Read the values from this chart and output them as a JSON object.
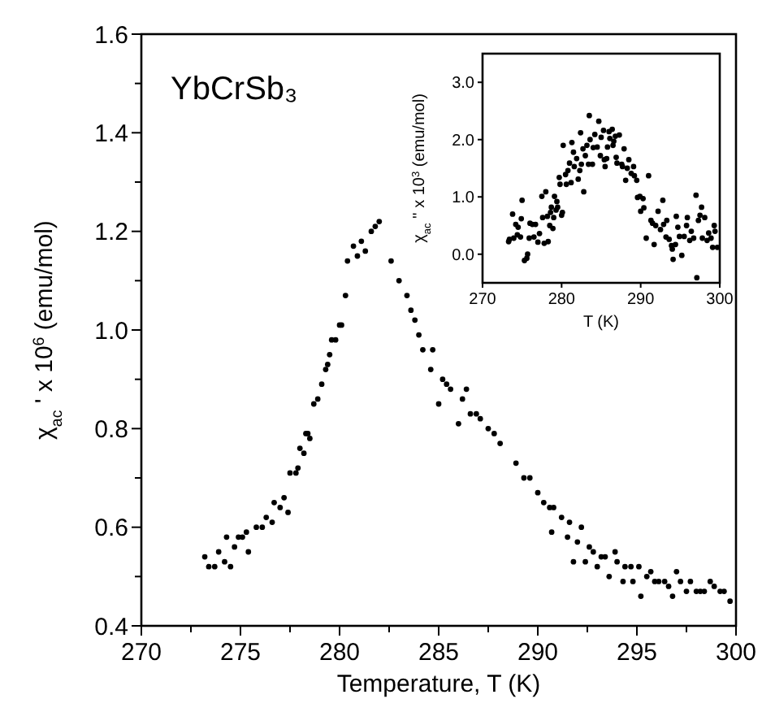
{
  "chart_data": [
    {
      "type": "scatter",
      "xlabel": "Temperature, T (K)",
      "ylabel": "χ$_{ac}$ ' x 10$^{6}$ (emu/mol)",
      "annotations": [
        "YbCrSb₃"
      ],
      "marker": "circle",
      "xlim": [
        270,
        300
      ],
      "ylim": [
        0.4,
        1.6
      ],
      "xticks": [
        270,
        {
          "value": 272.5,
          "label": null
        },
        275,
        {
          "value": 277.5,
          "label": null
        },
        280,
        {
          "value": 282.5,
          "label": null
        },
        285,
        {
          "value": 287.5,
          "label": null
        },
        290,
        {
          "value": 292.5,
          "label": null
        },
        295,
        {
          "value": 297.5,
          "label": null
        },
        300
      ],
      "yticks": [
        0.4,
        {
          "value": 0.5,
          "label": null
        },
        0.6,
        {
          "value": 0.7,
          "label": null
        },
        0.8,
        {
          "value": 0.9,
          "label": null
        },
        {
          "value": 1.0,
          "label": "1.0"
        },
        {
          "value": 1.1,
          "label": null
        },
        1.2,
        {
          "value": 1.3,
          "label": null
        },
        1.4,
        {
          "value": 1.5,
          "label": null
        },
        1.6
      ],
      "series": [
        {
          "color": "#000000",
          "x": [
            273.2,
            273.4,
            273.7,
            273.9,
            274.2,
            274.3,
            274.5,
            274.7,
            274.9,
            275.1,
            275.3,
            275.4,
            275.8,
            276.1,
            276.3,
            276.6,
            276.7,
            277.0,
            277.2,
            277.4,
            277.5,
            277.8,
            277.9,
            278.0,
            278.2,
            278.3,
            278.4,
            278.5,
            278.7,
            278.9,
            279.1,
            279.3,
            279.4,
            279.5,
            279.6,
            279.8,
            280.0,
            280.1,
            280.3,
            280.4,
            280.7,
            280.9,
            281.1,
            281.3,
            281.6,
            281.8,
            282.0,
            282.6,
            283.0,
            283.4,
            283.6,
            283.8,
            284.0,
            284.2,
            284.7,
            284.6,
            285.0,
            285.2,
            285.4,
            285.6,
            286.0,
            286.2,
            286.4,
            286.6,
            286.9,
            287.1,
            287.5,
            287.8,
            288.1,
            288.9,
            289.3,
            289.6,
            290.0,
            290.3,
            290.6,
            290.8,
            290.7,
            291.2,
            291.5,
            291.6,
            291.8,
            292.0,
            292.2,
            292.4,
            292.6,
            292.8,
            293.0,
            293.2,
            293.4,
            293.6,
            293.9,
            294.0,
            294.3,
            294.4,
            294.7,
            294.8,
            295.1,
            295.2,
            295.5,
            295.7,
            295.9,
            296.1,
            296.4,
            296.6,
            296.8,
            297.0,
            297.2,
            297.5,
            297.7,
            298.0,
            298.2,
            298.4,
            298.7,
            298.9,
            299.2,
            299.4,
            299.7
          ],
          "values": [
            0.54,
            0.52,
            0.52,
            0.55,
            0.53,
            0.58,
            0.52,
            0.56,
            0.58,
            0.58,
            0.59,
            0.55,
            0.6,
            0.6,
            0.62,
            0.61,
            0.65,
            0.64,
            0.66,
            0.63,
            0.71,
            0.71,
            0.72,
            0.76,
            0.75,
            0.79,
            0.79,
            0.78,
            0.85,
            0.86,
            0.89,
            0.92,
            0.93,
            0.95,
            0.98,
            0.98,
            1.01,
            1.01,
            1.07,
            1.14,
            1.17,
            1.15,
            1.18,
            1.16,
            1.2,
            1.21,
            1.22,
            1.14,
            1.1,
            1.07,
            1.04,
            1.02,
            0.99,
            0.96,
            0.96,
            0.92,
            0.85,
            0.9,
            0.89,
            0.88,
            0.81,
            0.86,
            0.88,
            0.83,
            0.83,
            0.82,
            0.8,
            0.79,
            0.77,
            0.73,
            0.7,
            0.7,
            0.67,
            0.65,
            0.64,
            0.64,
            0.59,
            0.62,
            0.58,
            0.61,
            0.53,
            0.57,
            0.6,
            0.53,
            0.56,
            0.55,
            0.52,
            0.54,
            0.54,
            0.5,
            0.55,
            0.53,
            0.49,
            0.52,
            0.52,
            0.49,
            0.52,
            0.46,
            0.5,
            0.51,
            0.49,
            0.49,
            0.49,
            0.48,
            0.46,
            0.51,
            0.49,
            0.47,
            0.49,
            0.47,
            0.47,
            0.47,
            0.49,
            0.48,
            0.47,
            0.47,
            0.45
          ]
        }
      ]
    },
    {
      "type": "scatter",
      "xlabel": "T (K)",
      "ylabel": "χ$_{ac}$ '' x 10$^{3}$ (emu/mol)",
      "marker": "circle",
      "xlim": [
        270,
        300
      ],
      "ylim": [
        -0.5,
        3.5
      ],
      "xticks": [
        270,
        280,
        290,
        300
      ],
      "yticks": [
        {
          "value": 0,
          "label": "0.0"
        },
        {
          "value": 1,
          "label": "1.0"
        },
        {
          "value": 2,
          "label": "2.0"
        },
        {
          "value": 3,
          "label": "3.0"
        }
      ],
      "series": [
        {
          "color": "#000000",
          "x": [
            273.3,
            273.4,
            273.8,
            273.95,
            274.2,
            274.4,
            274.5,
            274.8,
            274.9,
            275.0,
            275.3,
            275.6,
            275.7,
            275.9,
            276.0,
            276.3,
            276.5,
            276.7,
            277.0,
            277.2,
            277.5,
            277.6,
            277.8,
            278.0,
            278.2,
            278.3,
            278.5,
            278.6,
            278.7,
            278.9,
            279.0,
            279.1,
            279.3,
            279.4,
            279.5,
            279.7,
            279.8,
            280.0,
            280.1,
            280.2,
            280.5,
            280.6,
            280.8,
            281.0,
            281.2,
            281.3,
            281.5,
            281.6,
            281.9,
            282.1,
            282.3,
            282.4,
            282.5,
            282.7,
            282.8,
            283.0,
            283.2,
            283.4,
            283.5,
            283.6,
            283.9,
            284.0,
            284.2,
            284.5,
            284.7,
            284.9,
            285.0,
            285.3,
            285.4,
            285.5,
            285.7,
            285.8,
            286.0,
            286.1,
            286.4,
            286.5,
            286.6,
            286.8,
            286.9,
            287.0,
            287.3,
            287.6,
            287.7,
            287.9,
            288.1,
            288.3,
            288.5,
            288.8,
            289.1,
            289.2,
            289.5,
            289.6,
            289.9,
            290.0,
            290.3,
            290.4,
            290.7,
            291.0,
            291.3,
            291.5,
            291.7,
            291.9,
            292.2,
            292.5,
            292.8,
            292.9,
            293.2,
            293.3,
            293.6,
            293.9,
            294.0,
            294.1,
            294.4,
            294.5,
            294.7,
            294.9,
            295.2,
            295.5,
            295.8,
            295.9,
            296.2,
            296.4,
            296.7,
            297.0,
            297.1,
            297.3,
            297.5,
            297.7,
            297.8,
            298.1,
            298.4,
            298.6,
            298.9,
            299.1,
            299.3,
            299.4,
            299.7
          ],
          "values": [
            0.22,
            0.26,
            0.7,
            0.28,
            0.52,
            0.34,
            0.47,
            0.3,
            0.62,
            0.94,
            -0.11,
            -0.07,
            0.0,
            0.28,
            0.54,
            0.52,
            0.3,
            0.52,
            0.21,
            0.36,
            1.01,
            0.64,
            0.19,
            1.09,
            0.66,
            0.22,
            0.5,
            0.73,
            0.82,
            0.45,
            0.64,
            1.01,
            0.77,
            0.92,
            0.82,
            1.34,
            1.22,
            0.68,
            0.73,
            1.9,
            1.39,
            1.22,
            1.46,
            1.59,
            1.25,
            1.95,
            1.78,
            1.53,
            1.67,
            1.31,
            1.46,
            2.12,
            1.57,
            1.84,
            1.09,
            1.72,
            1.9,
            1.57,
            2.42,
            2.0,
            1.57,
            1.86,
            2.09,
            1.87,
            2.32,
            1.72,
            2.04,
            2.16,
            1.65,
            1.53,
            1.67,
            1.87,
            2.14,
            2.02,
            2.18,
            1.9,
            1.97,
            2.06,
            1.69,
            1.59,
            2.08,
            1.57,
            1.53,
            1.84,
            1.29,
            1.5,
            1.65,
            1.41,
            1.53,
            1.37,
            1.29,
            0.99,
            1.01,
            0.75,
            0.97,
            0.81,
            0.28,
            1.37,
            0.59,
            0.54,
            0.17,
            0.5,
            0.75,
            0.43,
            0.94,
            0.52,
            0.3,
            0.59,
            0.26,
            0.15,
            0.09,
            -0.09,
            0.17,
            0.66,
            0.47,
            0.31,
            -0.02,
            0.31,
            0.5,
            0.64,
            0.24,
            0.4,
            0.28,
            1.03,
            -0.41,
            0.59,
            0.68,
            0.82,
            0.28,
            0.64,
            0.24,
            0.37,
            0.28,
            0.12,
            0.5,
            0.4,
            0.12
          ]
        }
      ]
    }
  ]
}
